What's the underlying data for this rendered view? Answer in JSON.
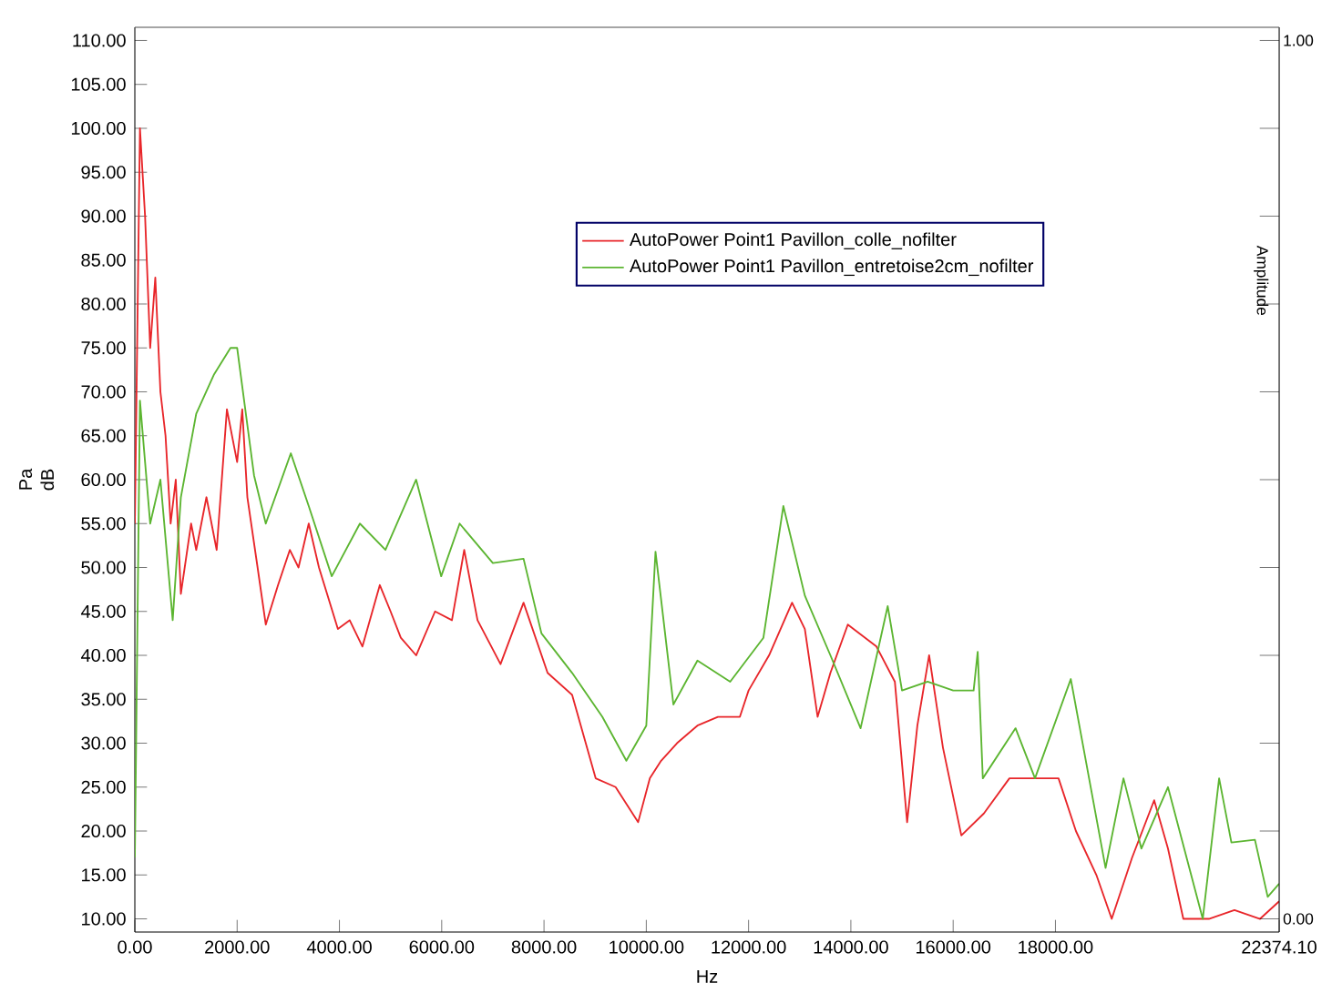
{
  "chart_data": {
    "type": "line",
    "xlabel": "Hz",
    "ylabel": "Pa dB",
    "y2label": "Amplitude",
    "xlim": [
      0,
      22374.1
    ],
    "ylim": [
      8.5,
      111.5
    ],
    "y2lim": [
      -0.015,
      1.015
    ],
    "xticks": [
      {
        "value": 0,
        "label": "0.00"
      },
      {
        "value": 2000,
        "label": "2000.00"
      },
      {
        "value": 4000,
        "label": "4000.00"
      },
      {
        "value": 6000,
        "label": "6000.00"
      },
      {
        "value": 8000,
        "label": "8000.00"
      },
      {
        "value": 10000,
        "label": "10000.00"
      },
      {
        "value": 12000,
        "label": "12000.00"
      },
      {
        "value": 14000,
        "label": "14000.00"
      },
      {
        "value": 16000,
        "label": "16000.00"
      },
      {
        "value": 18000,
        "label": "18000.00"
      },
      {
        "value": 22374.1,
        "label": "22374.10"
      }
    ],
    "yticks": [
      {
        "value": 10,
        "label": "10.00"
      },
      {
        "value": 15,
        "label": "15.00"
      },
      {
        "value": 20,
        "label": "20.00"
      },
      {
        "value": 25,
        "label": "25.00"
      },
      {
        "value": 30,
        "label": "30.00"
      },
      {
        "value": 35,
        "label": "35.00"
      },
      {
        "value": 40,
        "label": "40.00"
      },
      {
        "value": 45,
        "label": "45.00"
      },
      {
        "value": 50,
        "label": "50.00"
      },
      {
        "value": 55,
        "label": "55.00"
      },
      {
        "value": 60,
        "label": "60.00"
      },
      {
        "value": 65,
        "label": "65.00"
      },
      {
        "value": 70,
        "label": "70.00"
      },
      {
        "value": 75,
        "label": "75.00"
      },
      {
        "value": 80,
        "label": "80.00"
      },
      {
        "value": 85,
        "label": "85.00"
      },
      {
        "value": 90,
        "label": "90.00"
      },
      {
        "value": 95,
        "label": "95.00"
      },
      {
        "value": 100,
        "label": "100.00"
      },
      {
        "value": 105,
        "label": "105.00"
      },
      {
        "value": 110,
        "label": "110.00"
      }
    ],
    "y2ticks": [
      {
        "value": 0,
        "label": "0.00"
      },
      {
        "value": 0.1,
        "label": null
      },
      {
        "value": 0.2,
        "label": null
      },
      {
        "value": 0.3,
        "label": null
      },
      {
        "value": 0.4,
        "label": null
      },
      {
        "value": 0.5,
        "label": null
      },
      {
        "value": 0.6,
        "label": null
      },
      {
        "value": 0.7,
        "label": null
      },
      {
        "value": 0.8,
        "label": null
      },
      {
        "value": 0.9,
        "label": null
      },
      {
        "value": 1,
        "label": "1.00"
      }
    ],
    "grid": false,
    "legend": "top",
    "marker": "none",
    "line_style": "solid",
    "series": [
      {
        "name": "AutoPower Point1  Pavillon_colle_nofilter",
        "color": "#e8262a",
        "x": [
          0,
          100,
          200,
          300,
          400,
          500,
          600,
          700,
          800,
          900,
          1100,
          1200,
          1400,
          1600,
          1800,
          2000,
          2100,
          2200,
          2400,
          2560,
          2800,
          3030,
          3200,
          3400,
          3600,
          3970,
          4200,
          4450,
          4790,
          5000,
          5200,
          5500,
          5870,
          6200,
          6440,
          6700,
          7150,
          7600,
          8070,
          8550,
          9010,
          9400,
          9840,
          10070,
          10290,
          10600,
          11000,
          11400,
          11830,
          12000,
          12400,
          12850,
          13100,
          13350,
          13600,
          13940,
          14500,
          14860,
          15100,
          15300,
          15530,
          15800,
          16160,
          16600,
          17100,
          17600,
          18060,
          18400,
          18800,
          19100,
          19500,
          19930,
          20200,
          20500,
          21000,
          21500,
          22000,
          22374.1
        ],
        "values": [
          55,
          100,
          90,
          75,
          83,
          70,
          65,
          55,
          60,
          47,
          55,
          52,
          58,
          52,
          68,
          62,
          68,
          58,
          50,
          43.5,
          48,
          52,
          50,
          55,
          50,
          43,
          44,
          41,
          48,
          45,
          42,
          40,
          45,
          44,
          52,
          44,
          39,
          46,
          38,
          35.5,
          26,
          25,
          21,
          26,
          28,
          30,
          32,
          33,
          33,
          36,
          40,
          46,
          43,
          33,
          38,
          43.5,
          41,
          37,
          21,
          32,
          40,
          29.5,
          19.5,
          22,
          26,
          26,
          26,
          20,
          15,
          10,
          17,
          23.5,
          18,
          10,
          10,
          11,
          10,
          12
        ]
      },
      {
        "name": "AutoPower Point1  Pavillon_entretoise2cm_nofilter",
        "color": "#5cb531",
        "x": [
          0,
          100,
          300,
          500,
          740,
          900,
          1200,
          1550,
          1870,
          2000,
          2330,
          2560,
          3050,
          3400,
          3850,
          4400,
          4900,
          5500,
          5990,
          6350,
          7000,
          7600,
          7950,
          8550,
          9140,
          9610,
          10000,
          10180,
          10530,
          11000,
          11640,
          12290,
          12680,
          13100,
          13600,
          14190,
          14720,
          15000,
          15500,
          16000,
          16400,
          16480,
          16580,
          17220,
          17600,
          18300,
          18980,
          19330,
          19680,
          20200,
          20880,
          21200,
          21440,
          21900,
          22150,
          22374.1
        ],
        "values": [
          17,
          69,
          55,
          60,
          44,
          58,
          67.5,
          72,
          75,
          75,
          60.5,
          55,
          63,
          57,
          49,
          55,
          52,
          60,
          49,
          55,
          50.5,
          51,
          42.5,
          38,
          33,
          28,
          32,
          51.8,
          34.4,
          39.4,
          37,
          42,
          57,
          46.8,
          40,
          31.7,
          45.6,
          36,
          37,
          36,
          36,
          40.4,
          26,
          31.7,
          26,
          37.3,
          15.8,
          26,
          18,
          25,
          10,
          26,
          18.7,
          19,
          12.5,
          14
        ]
      }
    ]
  }
}
